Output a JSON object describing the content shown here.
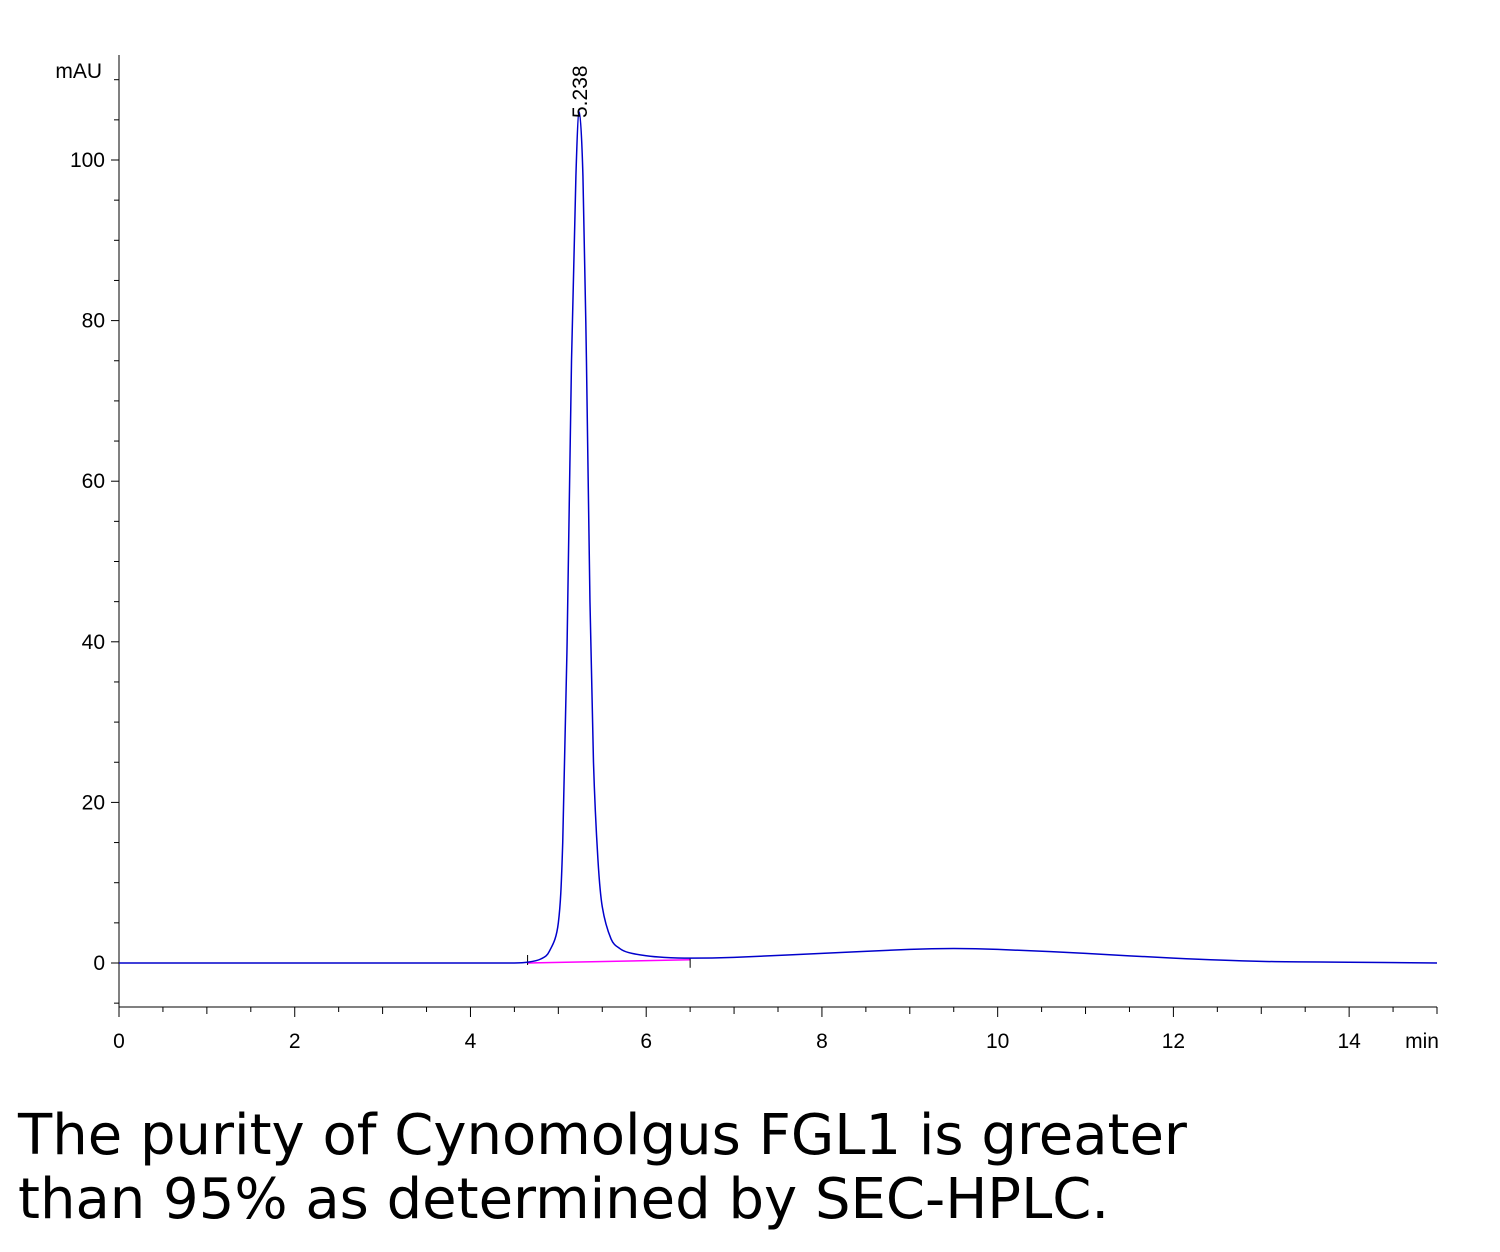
{
  "chart_data": {
    "type": "line",
    "ylabel": "mAU",
    "xlabel": "min",
    "xlim": [
      0,
      15
    ],
    "ylim": [
      -5,
      110
    ],
    "x_ticks": [
      "0",
      "2",
      "4",
      "6",
      "8",
      "10",
      "12",
      "14"
    ],
    "y_ticks": [
      "0",
      "20",
      "40",
      "60",
      "80",
      "100"
    ],
    "peak_label": "5.238",
    "series": [
      {
        "color": "#0000cc",
        "x": [
          0,
          1,
          2,
          3,
          4,
          4.5,
          4.65,
          4.8,
          4.9,
          5.0,
          5.05,
          5.1,
          5.15,
          5.2,
          5.238,
          5.28,
          5.32,
          5.36,
          5.4,
          5.45,
          5.5,
          5.6,
          5.7,
          5.8,
          6.0,
          6.2,
          6.5,
          7,
          8,
          9,
          9.5,
          10,
          11,
          12,
          13,
          14,
          15
        ],
        "y": [
          0,
          0,
          0,
          0,
          0,
          0,
          0.1,
          0.5,
          1.5,
          5,
          15,
          40,
          75,
          98,
          106,
          98,
          75,
          45,
          25,
          13,
          7,
          3,
          1.8,
          1.3,
          0.9,
          0.7,
          0.6,
          0.7,
          1.2,
          1.7,
          1.8,
          1.7,
          1.2,
          0.6,
          0.2,
          0.1,
          0
        ]
      }
    ],
    "baseline": {
      "color": "#ff00ff",
      "x": [
        4.65,
        6.5
      ],
      "y": [
        0,
        0.4
      ]
    }
  },
  "caption": {
    "line1": "The purity of Cynomolgus FGL1 is greater",
    "line2": "than 95% as determined by SEC-HPLC."
  }
}
